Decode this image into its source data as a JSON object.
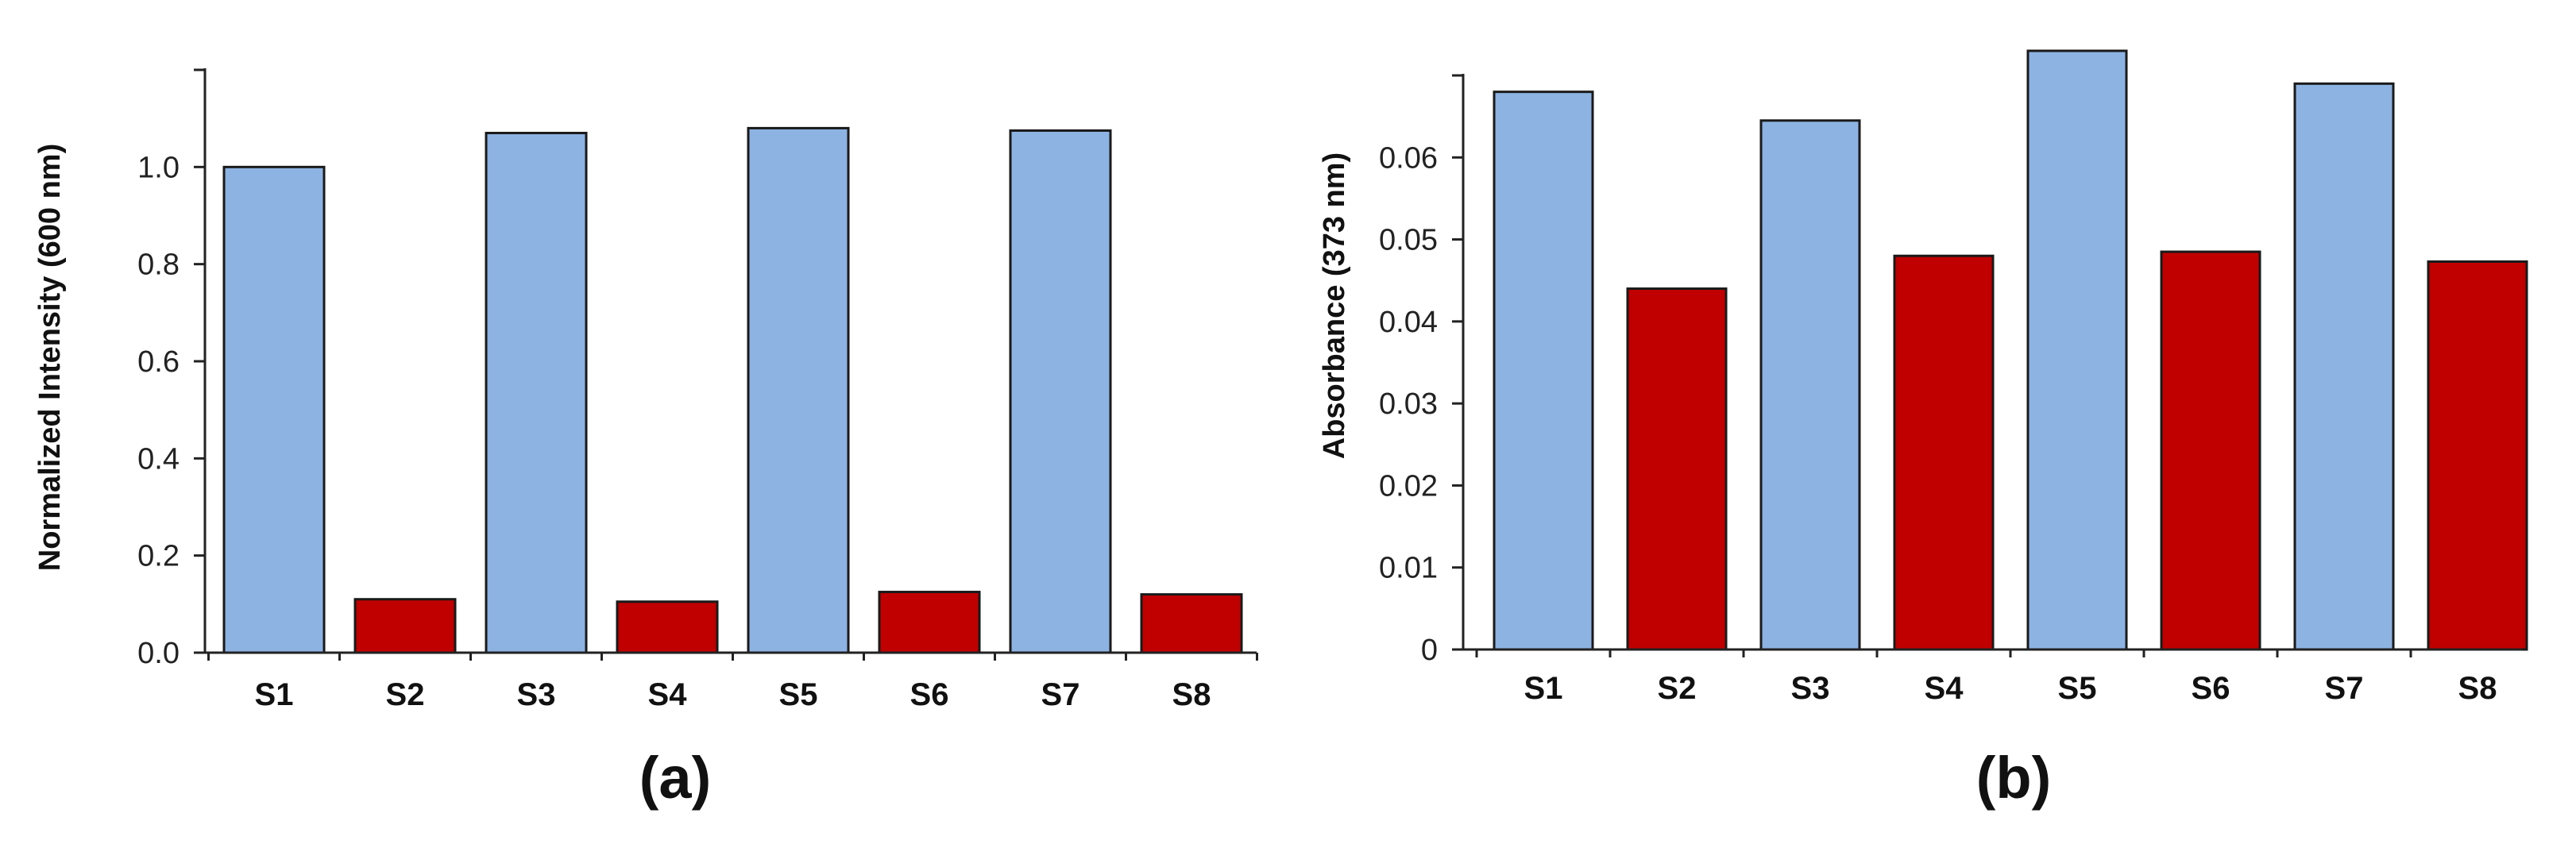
{
  "chart_data": [
    {
      "type": "bar",
      "panel_label": "(a)",
      "ylabel": "Normalized Intensity (600 nm)",
      "categories": [
        "S1",
        "S2",
        "S3",
        "S4",
        "S5",
        "S6",
        "S7",
        "S8"
      ],
      "values": [
        1.0,
        0.11,
        1.07,
        0.105,
        1.08,
        0.125,
        1.075,
        0.12
      ],
      "colors": [
        "#8db3e2",
        "#c00000",
        "#8db3e2",
        "#c00000",
        "#8db3e2",
        "#c00000",
        "#8db3e2",
        "#c00000"
      ],
      "yticks": [
        "0.0",
        "0.2",
        "0.4",
        "0.6",
        "0.8",
        "1.0"
      ],
      "ylim": [
        0,
        1.2
      ],
      "grid": false
    },
    {
      "type": "bar",
      "panel_label": "(b)",
      "ylabel": "Absorbance (373 nm)",
      "categories": [
        "S1",
        "S2",
        "S3",
        "S4",
        "S5",
        "S6",
        "S7",
        "S8"
      ],
      "values": [
        0.068,
        0.044,
        0.0645,
        0.048,
        0.073,
        0.0485,
        0.069,
        0.0473
      ],
      "colors": [
        "#8db3e2",
        "#c00000",
        "#8db3e2",
        "#c00000",
        "#8db3e2",
        "#c00000",
        "#8db3e2",
        "#c00000"
      ],
      "yticks": [
        "0",
        "0.01",
        "0.02",
        "0.03",
        "0.04",
        "0.05",
        "0.06"
      ],
      "ylim": [
        0,
        0.07
      ],
      "grid": false
    }
  ]
}
